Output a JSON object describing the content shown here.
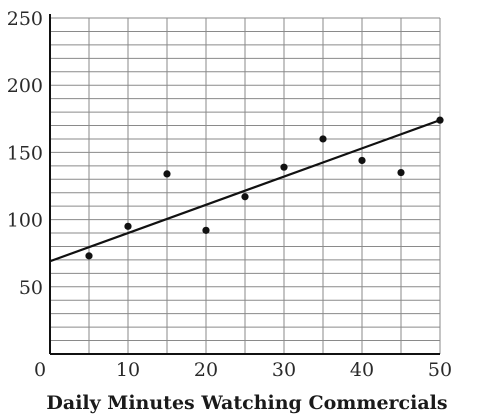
{
  "chart_data": {
    "type": "scatter",
    "title": "",
    "xlabel": "Daily Minutes Watching Commercials",
    "ylabel": "",
    "xlim": [
      0,
      50
    ],
    "ylim": [
      0,
      250
    ],
    "x_ticks": [
      0,
      10,
      20,
      30,
      40,
      50
    ],
    "y_ticks": [
      50,
      100,
      150,
      200,
      250
    ],
    "x_minor_step": 5,
    "y_minor_step": 10,
    "grid": true,
    "legend": "none",
    "series": [
      {
        "values": [
          {
            "x": 5,
            "y": 73
          },
          {
            "x": 10,
            "y": 95
          },
          {
            "x": 15,
            "y": 134
          },
          {
            "x": 20,
            "y": 92
          },
          {
            "x": 25,
            "y": 117
          },
          {
            "x": 30,
            "y": 139
          },
          {
            "x": 35,
            "y": 160
          },
          {
            "x": 40,
            "y": 144
          },
          {
            "x": 45,
            "y": 135
          },
          {
            "x": 50,
            "y": 174
          }
        ]
      }
    ],
    "trend_line": {
      "x_start": 0,
      "y_start": 69,
      "x_end": 50,
      "y_end": 174
    },
    "colors": {
      "points": "#111111",
      "line": "#111111",
      "grid": "#8a8a8a"
    }
  }
}
